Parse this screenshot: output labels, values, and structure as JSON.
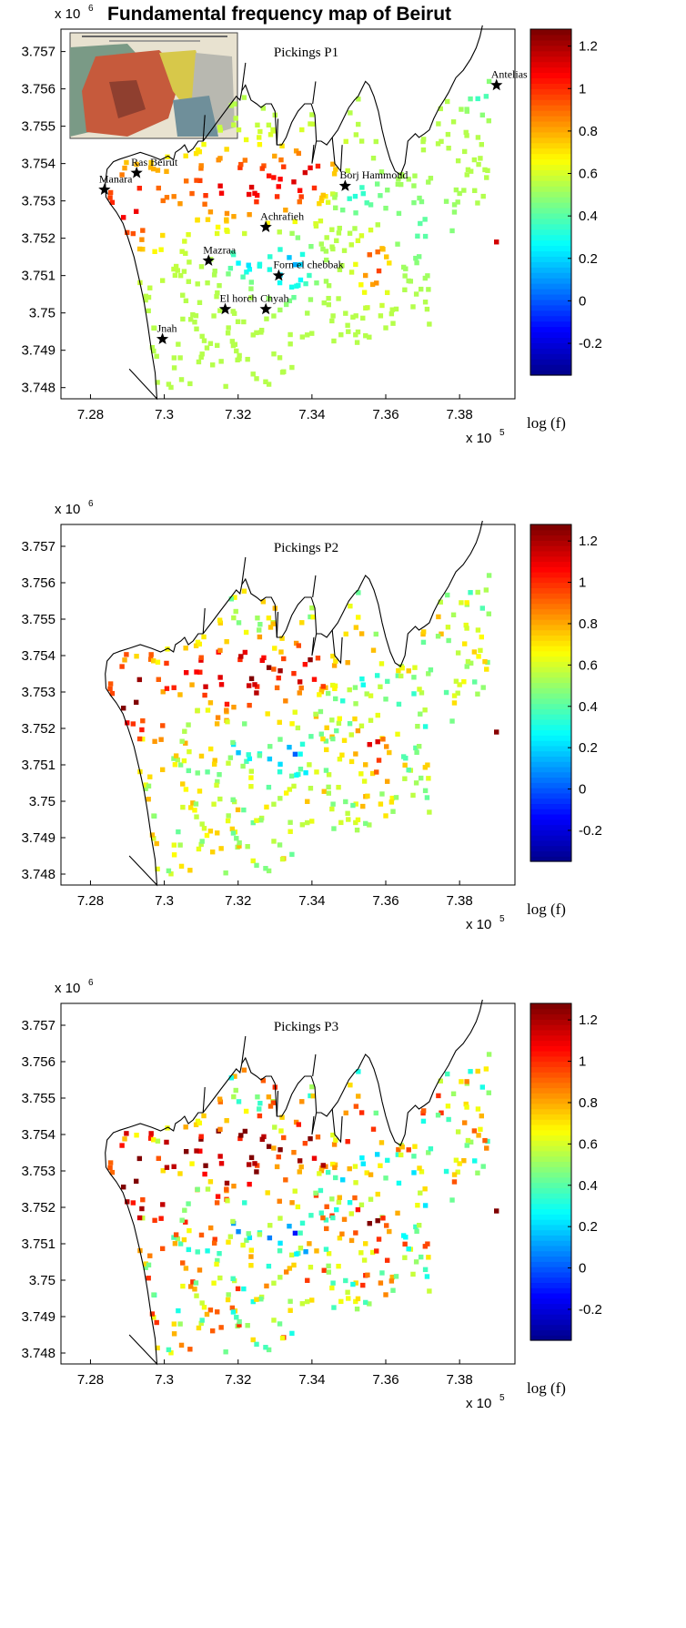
{
  "page": {
    "title": "Fundamental frequency map of Beirut",
    "exponent_base": "x 10",
    "y_exponent": "6",
    "x_exponent": "5",
    "colorbar_label": "log (f)",
    "colormap": [
      "#00008f",
      "#0000ff",
      "#0080ff",
      "#00ffff",
      "#80ff80",
      "#ffff00",
      "#ff8000",
      "#ff0000",
      "#800000"
    ]
  },
  "chart_data": [
    {
      "type": "scatter",
      "subtitle": "Pickings P1",
      "xlim": [
        7.272,
        7.395
      ],
      "ylim": [
        3.7477,
        3.7576
      ],
      "xticks": [
        "7.28",
        "7.3",
        "7.32",
        "7.34",
        "7.36",
        "7.38"
      ],
      "yticks": [
        "3.757",
        "3.756",
        "3.755",
        "3.754",
        "3.753",
        "3.752",
        "3.751",
        "3.75",
        "3.749",
        "3.748"
      ],
      "colorbar": {
        "min": -0.35,
        "max": 1.28,
        "ticks": [
          "1.2",
          "1",
          "0.8",
          "0.6",
          "0.4",
          "0.2",
          "0",
          "-0.2"
        ]
      },
      "places": [
        {
          "name": "Antelias",
          "x": 7.39,
          "y": 3.7561
        },
        {
          "name": "Ras Beirut",
          "x": 7.2925,
          "y": 3.75375
        },
        {
          "name": "Manara",
          "x": 7.2838,
          "y": 3.7533
        },
        {
          "name": "Borj Hammoud",
          "x": 7.349,
          "y": 3.7534
        },
        {
          "name": "Achrafieh",
          "x": 7.3275,
          "y": 3.7523
        },
        {
          "name": "Mazraa",
          "x": 7.312,
          "y": 3.7514
        },
        {
          "name": "Forn el chebbak",
          "x": 7.331,
          "y": 3.751
        },
        {
          "name": "El horch",
          "x": 7.3165,
          "y": 3.7501
        },
        {
          "name": "Chyah",
          "x": 7.3275,
          "y": 3.7501
        },
        {
          "name": "Jnah",
          "x": 7.2995,
          "y": 3.7493
        }
      ]
    },
    {
      "type": "scatter",
      "subtitle": "Pickings P2",
      "xlim": [
        7.272,
        7.395
      ],
      "ylim": [
        3.7477,
        3.7576
      ],
      "xticks": [
        "7.28",
        "7.3",
        "7.32",
        "7.34",
        "7.36",
        "7.38"
      ],
      "yticks": [
        "3.757",
        "3.756",
        "3.755",
        "3.754",
        "3.753",
        "3.752",
        "3.751",
        "3.75",
        "3.749",
        "3.748"
      ],
      "colorbar": {
        "min": -0.35,
        "max": 1.28,
        "ticks": [
          "1.2",
          "1",
          "0.8",
          "0.6",
          "0.4",
          "0.2",
          "0",
          "-0.2"
        ]
      }
    },
    {
      "type": "scatter",
      "subtitle": "Pickings P3",
      "xlim": [
        7.272,
        7.395
      ],
      "ylim": [
        3.7477,
        3.7576
      ],
      "xticks": [
        "7.28",
        "7.3",
        "7.32",
        "7.34",
        "7.36",
        "7.38"
      ],
      "yticks": [
        "3.757",
        "3.756",
        "3.755",
        "3.754",
        "3.753",
        "3.752",
        "3.751",
        "3.75",
        "3.749",
        "3.748"
      ],
      "colorbar": {
        "min": -0.35,
        "max": 1.28,
        "ticks": [
          "1.2",
          "1",
          "0.8",
          "0.6",
          "0.4",
          "0.2",
          "0",
          "-0.2"
        ]
      }
    }
  ]
}
